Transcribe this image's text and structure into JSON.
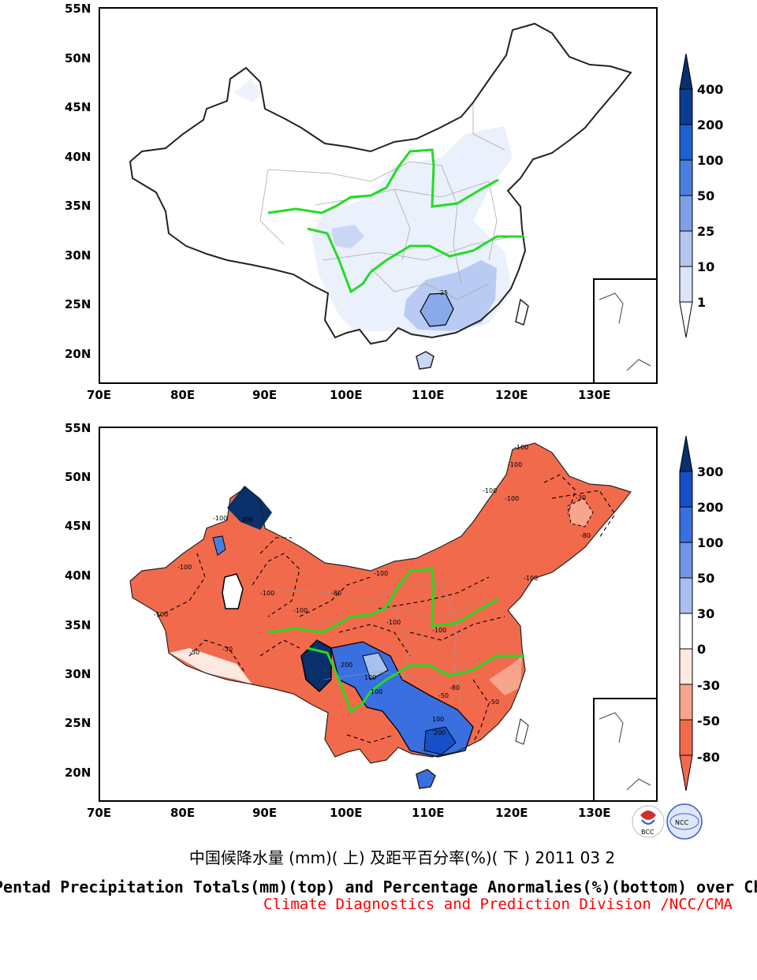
{
  "top_map": {
    "y_ticks": [
      "55N",
      "50N",
      "45N",
      "40N",
      "35N",
      "30N",
      "25N",
      "20N"
    ],
    "x_ticks": [
      "70E",
      "80E",
      "90E",
      "100E",
      "110E",
      "120E",
      "130E"
    ],
    "colorbar": [
      "400",
      "200",
      "100",
      "50",
      "25",
      "10",
      "1"
    ],
    "colorbar_colors": [
      "#08306b",
      "#0b3d91",
      "#1f5fd1",
      "#4a7fe0",
      "#7f9fe8",
      "#b4c7f0",
      "#dbe6fa",
      "#ffffff"
    ],
    "contour_labels": [
      "25"
    ]
  },
  "bottom_map": {
    "y_ticks": [
      "55N",
      "50N",
      "45N",
      "40N",
      "35N",
      "30N",
      "25N",
      "20N"
    ],
    "x_ticks": [
      "70E",
      "80E",
      "90E",
      "100E",
      "110E",
      "120E",
      "130E"
    ],
    "colorbar": [
      "300",
      "200",
      "100",
      "50",
      "30",
      "0",
      "-30",
      "-50",
      "-80"
    ],
    "colorbar_colors": [
      "#08306b",
      "#1550c8",
      "#3a6fe0",
      "#6f95e8",
      "#a8c0f0",
      "#ffffff",
      "#fde9df",
      "#f7a58c",
      "#f26a4c"
    ],
    "contour_labels": [
      "-100",
      "-100",
      "-100",
      "-100",
      "-100",
      "-100",
      "-100",
      "-100",
      "-100",
      "-100",
      "-100",
      "-100",
      "-100",
      "-80",
      "-80",
      "-80",
      "-50",
      "-50",
      "-50",
      "-30",
      "-30",
      "100",
      "200",
      "300",
      "100",
      "200",
      "100"
    ]
  },
  "caption": {
    "chinese": "中国候降水量 (mm)( 上) 及距平百分率(%)( 下 ) 2011 03 2",
    "english": "Pentad Precipitation Totals(mm)(top) and Percentage Anormalies(%)(bottom) over China",
    "division": "Climate Diagnostics and Prediction Division /NCC/CMA"
  },
  "logos": {
    "bcc": "BCC",
    "ncc": "NCC"
  }
}
